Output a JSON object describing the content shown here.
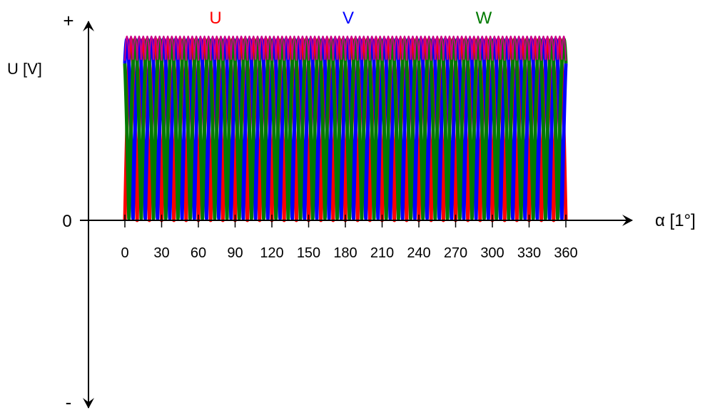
{
  "chart_data": {
    "type": "line",
    "title": "",
    "ylabel": "U [V]",
    "xlabel": "α [1°]",
    "y_plus_label": "+",
    "y_minus_label": "-",
    "y_zero_label": "0",
    "xlim": [
      0,
      360
    ],
    "ylim": [
      0,
      1
    ],
    "x_ticks": [
      0,
      30,
      60,
      90,
      120,
      150,
      180,
      210,
      240,
      270,
      300,
      330,
      360
    ],
    "x_tick_labels": [
      "0",
      "30",
      "60",
      "90",
      "120",
      "150",
      "180",
      "210",
      "240",
      "270",
      "300",
      "330",
      "360"
    ],
    "rectified_periods": 18,
    "envelope_color": "#cc0088",
    "series": [
      {
        "name": "U",
        "color": "#ff0000",
        "phase_deg": 0
      },
      {
        "name": "V",
        "color": "#0000ff",
        "phase_deg": 120
      },
      {
        "name": "W",
        "color": "#007a00",
        "phase_deg": 240
      }
    ]
  }
}
